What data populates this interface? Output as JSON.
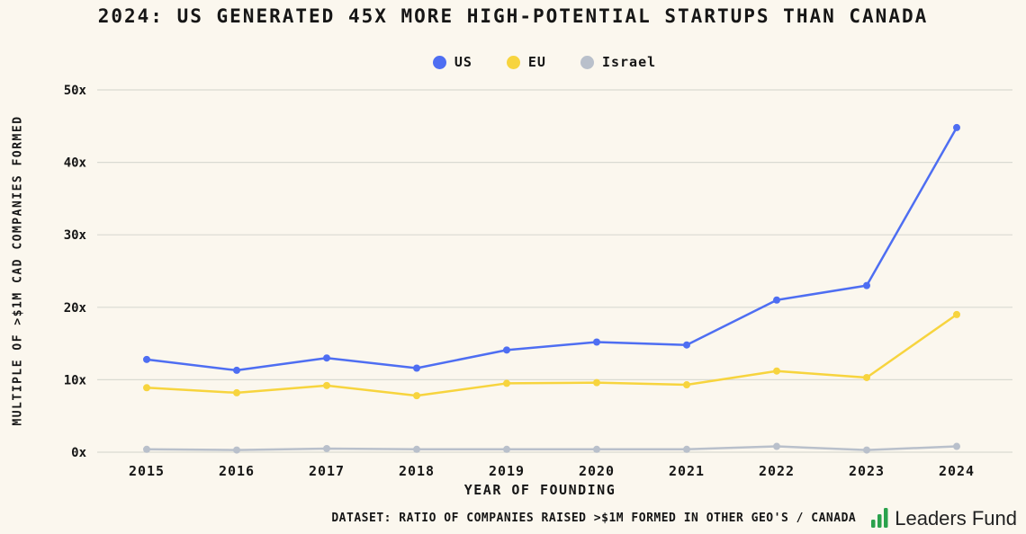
{
  "chart_data": {
    "type": "line",
    "title": "2024: US GENERATED 45X MORE HIGH-POTENTIAL STARTUPS THAN CANADA",
    "xlabel": "YEAR OF FOUNDING",
    "ylabel": "MULTIPLE OF >$1M CAD COMPANIES FORMED",
    "x": [
      2015,
      2016,
      2017,
      2018,
      2019,
      2020,
      2021,
      2022,
      2023,
      2024
    ],
    "ylim": [
      0,
      50
    ],
    "yticks": [
      0,
      10,
      20,
      30,
      40,
      50
    ],
    "ytick_suffix": "x",
    "grid": "horizontal",
    "legend_position": "top-center",
    "series": [
      {
        "name": "US",
        "color": "#4e6ef2",
        "values": [
          12.8,
          11.3,
          13.0,
          11.6,
          14.1,
          15.2,
          14.8,
          21.0,
          23.0,
          44.8
        ]
      },
      {
        "name": "EU",
        "color": "#f7d43e",
        "values": [
          8.9,
          8.2,
          9.2,
          7.8,
          9.5,
          9.6,
          9.3,
          11.2,
          10.3,
          19.0
        ]
      },
      {
        "name": "Israel",
        "color": "#b9c0cb",
        "values": [
          0.4,
          0.3,
          0.5,
          0.4,
          0.4,
          0.4,
          0.4,
          0.8,
          0.3,
          0.8
        ]
      }
    ]
  },
  "footer": {
    "caption": "DATASET: RATIO OF COMPANIES RAISED >$1M FORMED IN OTHER GEO'S / CANADA",
    "logo_text": "Leaders Fund",
    "logo_color": "#2aa24c"
  },
  "colors": {
    "background": "#fbf7ee",
    "text": "#161616",
    "grid": "#dadad2"
  }
}
